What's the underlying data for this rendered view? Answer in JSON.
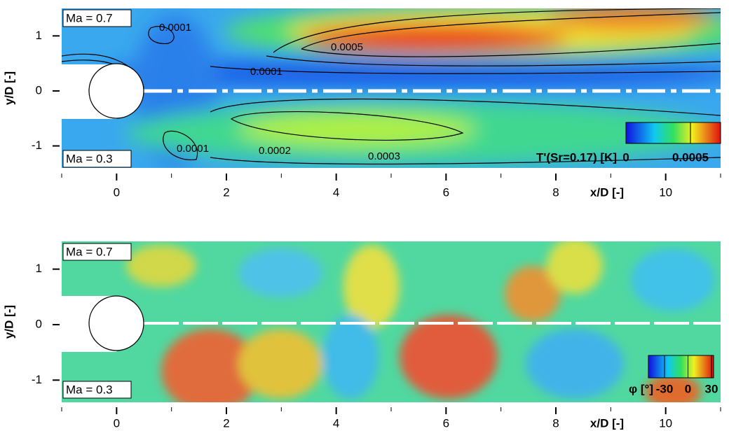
{
  "chart_data": [
    {
      "type": "contour",
      "xlabel": "x/D [-]",
      "ylabel": "y/D [-]",
      "xlim": [
        -1,
        11
      ],
      "ylim": [
        -1.4,
        1.5
      ],
      "xticks": [
        0,
        2,
        4,
        6,
        8,
        10
      ],
      "xminor_ticks": [
        -1,
        1,
        3,
        5,
        7,
        9,
        11
      ],
      "yticks": [
        -1,
        0,
        1
      ],
      "annotations": [
        "Ma = 0.7",
        "Ma = 0.3",
        "0.0001",
        "0.0005",
        "0.0001",
        "0.0001",
        "0.0002",
        "0.0003"
      ],
      "colorbar": {
        "label": "T'(Sr=0.17) [K]",
        "range": [
          0,
          0.0005
        ],
        "ticks": [
          0,
          0.0005
        ]
      }
    },
    {
      "type": "phase",
      "xlabel": "x/D [-]",
      "ylabel": "y/D [-]",
      "xlim": [
        -1,
        11
      ],
      "ylim": [
        -1.4,
        1.5
      ],
      "xticks": [
        0,
        2,
        4,
        6,
        8,
        10
      ],
      "xminor_ticks": [
        -1,
        1,
        3,
        5,
        7,
        9,
        11
      ],
      "yticks": [
        -1,
        0,
        1
      ],
      "annotations": [
        "Ma = 0.7",
        "Ma = 0.3"
      ],
      "colorbar": {
        "label": "φ [°]",
        "range": [
          -30,
          30
        ],
        "ticks": [
          -30,
          0,
          30
        ]
      }
    }
  ]
}
